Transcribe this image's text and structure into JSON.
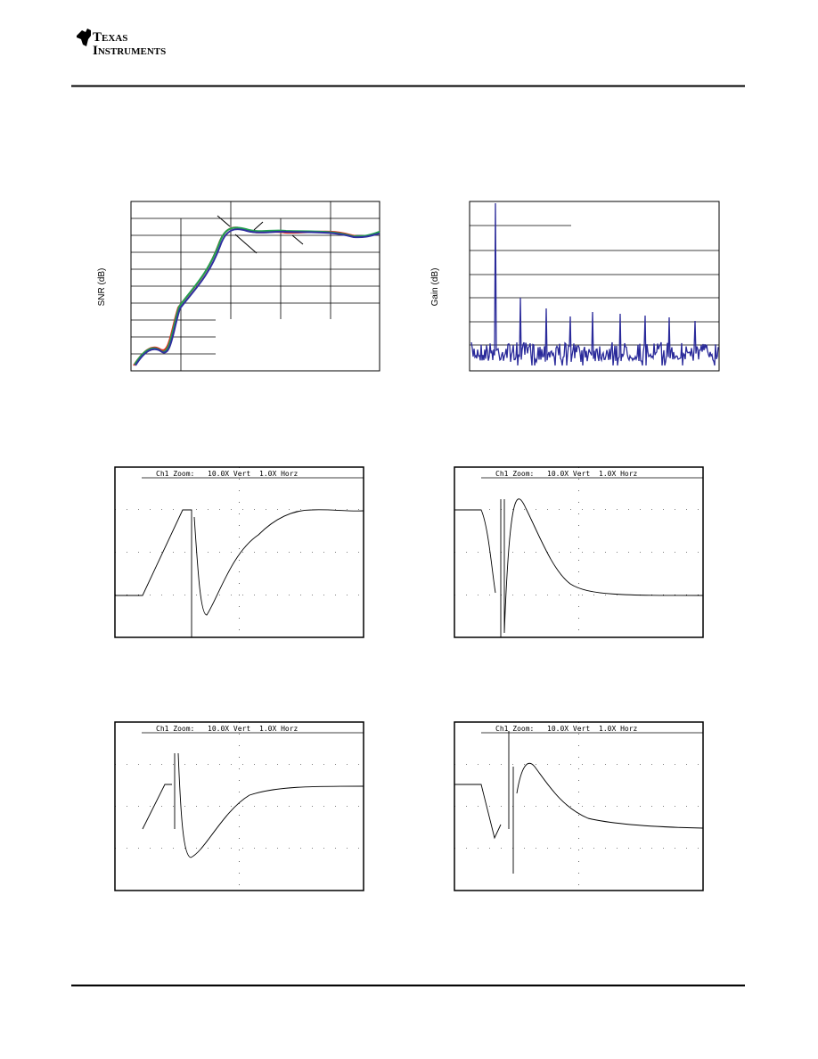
{
  "header": {
    "logo_line1": "Texas",
    "logo_line2": "Instruments"
  },
  "figures": [
    {
      "y_label": "SNR (dB)"
    },
    {
      "y_label": "Gain (dB)"
    },
    {
      "scope_label": "Ch1 Zoom:",
      "vert": "10.0X Vert",
      "horz": "1.0X Horz"
    },
    {
      "scope_label": "Ch1 Zoom:",
      "vert": "10.0X Vert",
      "horz": "1.0X Horz"
    },
    {
      "scope_label": "Ch1 Zoom:",
      "vert": "10.0X Vert",
      "horz": "1.0X Horz"
    },
    {
      "scope_label": "Ch1 Zoom:",
      "vert": "10.0X Vert",
      "horz": "1.0X Horz"
    }
  ]
}
